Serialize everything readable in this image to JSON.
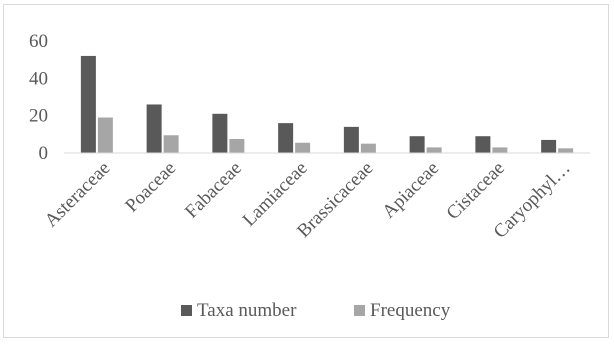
{
  "chart_data": {
    "type": "bar",
    "categories": [
      "Asteraceae",
      "Poaceae",
      "Fabaceae",
      "Lamiaceae",
      "Brassicaceae",
      "Apiaceae",
      "Cistaceae",
      "Caryophyl…"
    ],
    "series": [
      {
        "name": "Taxa number",
        "color": "#595959",
        "values": [
          52,
          26,
          21,
          16,
          14,
          9,
          9,
          7
        ]
      },
      {
        "name": "Frequency",
        "color": "#a6a6a6",
        "values": [
          19,
          9.5,
          7.5,
          5.5,
          5,
          3,
          3,
          2.5
        ]
      }
    ],
    "yticks": [
      0,
      20,
      40,
      60
    ],
    "ylim": [
      0,
      60
    ],
    "legend_position": "bottom",
    "grid": false
  }
}
